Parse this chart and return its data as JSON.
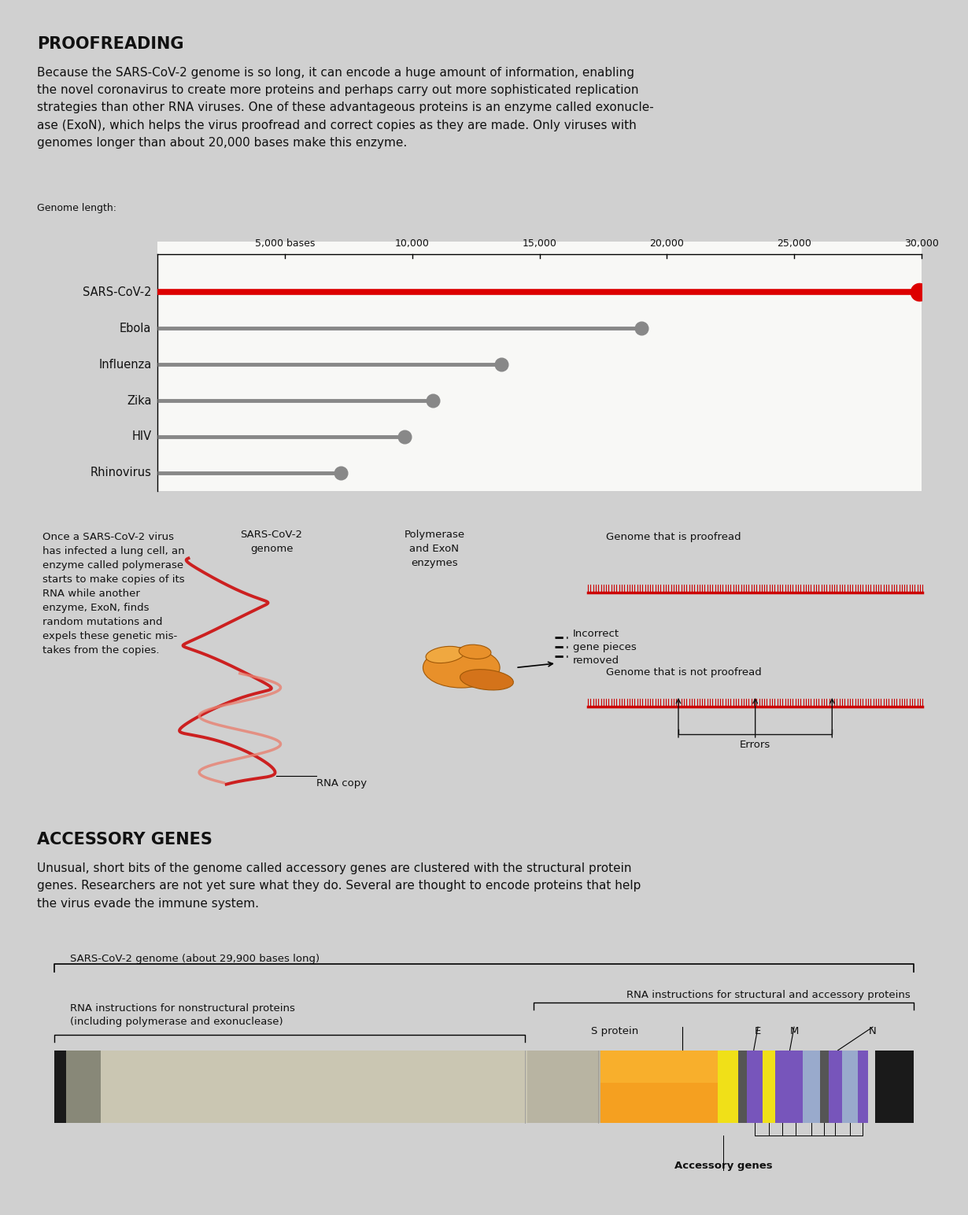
{
  "bg_color": "#d0d0d0",
  "panel_bg": "#f0f0f0",
  "title1": "PROOFREADING",
  "title2": "ACCESSORY GENES",
  "para1_lines": [
    "Because the SARS-CoV-2 genome is so long, it can encode a huge amount of information, enabling",
    "the novel coronavirus to create more proteins and perhaps carry out more sophisticated replication",
    "strategies than other RNA viruses. One of these advantageous proteins is an enzyme called exonucle-",
    "ase (ExoN), which helps the virus proofread and correct copies as they are made. Only viruses with",
    "genomes longer than about 20,000 bases make this enzyme."
  ],
  "para2_lines": [
    "Unusual, short bits of the genome called accessory genes are clustered with the structural protein",
    "genes. Researchers are not yet sure what they do. Several are thought to encode proteins that help",
    "the virus evade the immune system."
  ],
  "viruses": [
    "Rhinovirus",
    "HIV",
    "Zika",
    "Influenza",
    "Ebola",
    "SARS-CoV-2"
  ],
  "genome_lengths": [
    7200,
    9700,
    10800,
    13500,
    19000,
    29900
  ],
  "bar_colors": [
    "#888888",
    "#888888",
    "#888888",
    "#888888",
    "#888888",
    "#dd0000"
  ],
  "x_max": 30000,
  "x_ticks": [
    5000,
    10000,
    15000,
    20000,
    25000,
    30000
  ],
  "x_tick_labels": [
    "5,000 bases",
    "10,000",
    "15,000",
    "20,000",
    "25,000",
    "30,000"
  ],
  "genome_bar_label": "SARS-CoV-2 genome (about 29,900 bases long)",
  "nonstruct_label": "RNA instructions for nonstructural proteins\n(including polymerase and exonuclease)",
  "struct_label": "RNA instructions for structural and accessory proteins",
  "accessory_label": "Accessory genes",
  "s_label": "S protein",
  "e_label": "E",
  "m_label": "M",
  "n_label": "N",
  "diagram_left_text": "Once a SARS-CoV-2 virus\nhas infected a lung cell, an\nenzyme called polymerase\nstarts to make copies of its\nRNA while another\nenzyme, ExoN, finds\nrandom mutations and\nexpels these genetic mis-\ntakes from the copies.",
  "diagram_col2_text": "SARS-CoV-2\ngenome",
  "diagram_col3_text": "Polymerase\nand ExoN\nenzymes",
  "proofread_label": "Genome that is proofread",
  "nonproofread_label": "Genome that is not proofread",
  "rna_copy_label": "RNA copy",
  "incorrect_label": "Incorrect\ngene pieces\nremoved",
  "errors_label": "Errors"
}
